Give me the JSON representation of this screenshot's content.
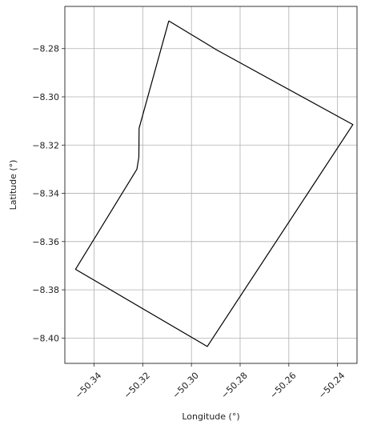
{
  "chart_data": {
    "type": "line",
    "xlabel": "Longitude (°)",
    "ylabel": "Latitude (°)",
    "xlim": [
      -50.352,
      -50.232
    ],
    "ylim": [
      -8.4105,
      -8.2625
    ],
    "grid": true,
    "xticks": [
      -50.34,
      -50.32,
      -50.3,
      -50.28,
      -50.26,
      -50.24
    ],
    "xtick_labels": [
      "−50.34",
      "−50.32",
      "−50.30",
      "−50.28",
      "−50.26",
      "−50.24"
    ],
    "yticks": [
      -8.28,
      -8.3,
      -8.32,
      -8.34,
      -8.36,
      -8.38,
      -8.4
    ],
    "ytick_labels": [
      "−8.28",
      "−8.30",
      "−8.32",
      "−8.34",
      "−8.36",
      "−8.38",
      "−8.40"
    ],
    "series": [
      {
        "color": "#000000",
        "x": [
          -50.3093,
          -50.2897,
          -50.2337,
          -50.2935,
          -50.3476,
          -50.3224,
          -50.3216,
          -50.3215,
          -50.3093
        ],
        "y": [
          -8.2685,
          -8.2805,
          -8.3115,
          -8.4035,
          -8.3715,
          -8.33,
          -8.325,
          -8.313,
          -8.2685
        ]
      }
    ]
  }
}
